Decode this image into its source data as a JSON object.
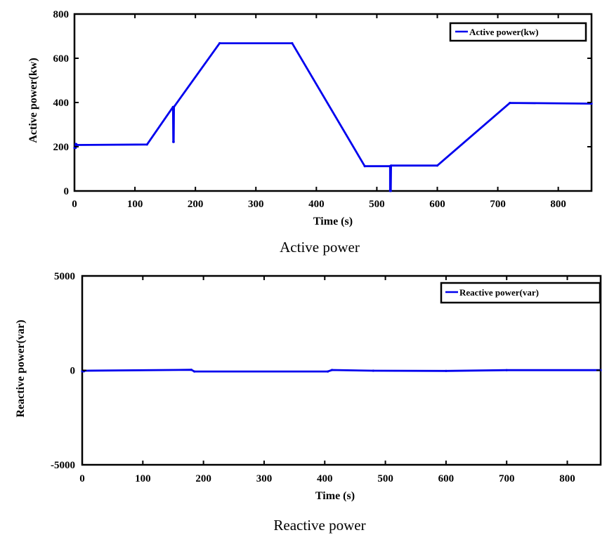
{
  "colors": {
    "series": "#0000ee",
    "axes": "#000000",
    "background": "#ffffff"
  },
  "chart_data": [
    {
      "type": "line",
      "caption": "Active power",
      "xlabel": "Time (s)",
      "ylabel": "Active power(kw)",
      "xlim": [
        0,
        855
      ],
      "ylim": [
        0,
        800
      ],
      "xticks": [
        0,
        100,
        200,
        300,
        400,
        500,
        600,
        700,
        800
      ],
      "yticks": [
        0,
        200,
        400,
        600,
        800
      ],
      "grid": false,
      "legend_position": "top-right",
      "series": [
        {
          "name": "Active power(kw)",
          "color": "#0000ee",
          "x": [
            0,
            2,
            2,
            3,
            3,
            120,
            163,
            163.5,
            164,
            164.5,
            240,
            360,
            480,
            522,
            522,
            523,
            523.5,
            600,
            720,
            855
          ],
          "y": [
            195,
            195,
            212,
            212,
            208,
            210,
            380,
            222,
            222,
            380,
            668,
            668,
            112,
            112,
            0,
            0,
            115,
            115,
            398,
            395
          ]
        }
      ]
    },
    {
      "type": "line",
      "caption": "Reactive power",
      "xlabel": "Time (s)",
      "ylabel": "Reactive power(var)",
      "xlim": [
        0,
        855
      ],
      "ylim": [
        -5000,
        5000
      ],
      "xticks": [
        0,
        100,
        200,
        300,
        400,
        500,
        600,
        700,
        800
      ],
      "yticks": [
        -5000,
        0,
        5000
      ],
      "grid": false,
      "legend_position": "top-right",
      "series": [
        {
          "name": "Reactive power(var)",
          "color": "#0000ee",
          "x": [
            0,
            3,
            3,
            180,
            185,
            405,
            412,
            480,
            600,
            700,
            855
          ],
          "y": [
            -50,
            -50,
            -20,
            30,
            -60,
            -60,
            20,
            -20,
            -30,
            10,
            10
          ]
        }
      ]
    }
  ]
}
